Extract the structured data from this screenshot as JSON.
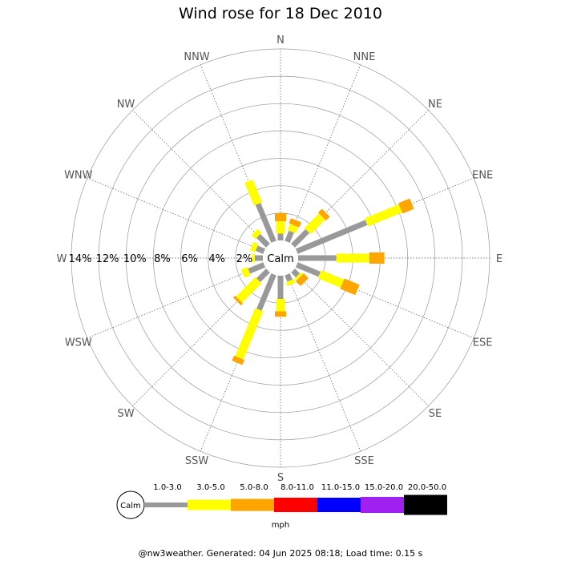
{
  "chart_data": {
    "type": "wind-rose",
    "title": "Wind rose for 18 Dec 2010",
    "directions": [
      "N",
      "NNE",
      "NE",
      "ENE",
      "E",
      "ESE",
      "SE",
      "SSE",
      "S",
      "SSW",
      "SW",
      "WSW",
      "W",
      "WNW",
      "NW",
      "NNW"
    ],
    "ring_labels": [
      "2%",
      "4%",
      "6%",
      "8%",
      "10%",
      "12%",
      "14%"
    ],
    "rmax": 14,
    "calm_label": "Calm",
    "unit": "mph",
    "speed_bins": [
      {
        "label": "1.0-3.0",
        "color": "#999999"
      },
      {
        "label": "3.0-5.0",
        "color": "#ffff00"
      },
      {
        "label": "5.0-8.0",
        "color": "#ffa500"
      },
      {
        "label": "8.0-11.0",
        "color": "#ff0000"
      },
      {
        "label": "11.0-15.0",
        "color": "#0000ff"
      },
      {
        "label": "15.0-20.0",
        "color": "#a020f0"
      },
      {
        "label": "20.0-50.0",
        "color": "#000000"
      }
    ],
    "series": [
      {
        "bin": "1.0-3.0",
        "values": [
          0.5,
          0.8,
          1.5,
          5.5,
          2.8,
          1.8,
          0.5,
          0.5,
          1.7,
          2.8,
          1.0,
          1.2,
          0.6,
          0.6,
          1.0,
          3.0
        ]
      },
      {
        "bin": "3.0-5.0",
        "values": [
          0.9,
          0.5,
          1.5,
          2.7,
          2.4,
          1.8,
          0.2,
          0.3,
          0.9,
          3.8,
          2.0,
          0.5,
          0.2,
          0.4,
          0.4,
          1.8
        ]
      },
      {
        "bin": "5.0-8.0",
        "values": [
          0.6,
          0.4,
          0.4,
          0.9,
          1.1,
          1.2,
          0.5,
          0,
          0.4,
          0.4,
          0.2,
          0,
          0,
          0,
          0,
          0
        ]
      }
    ]
  },
  "footer": "@nw3weather. Generated: 04 Jun 2025 08:18; Load time: 0.15 s"
}
